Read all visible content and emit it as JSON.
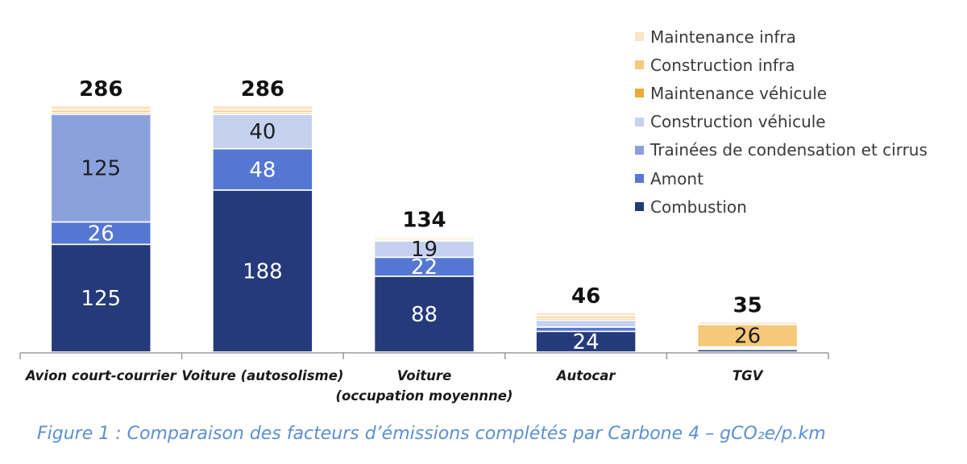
{
  "chart_data": {
    "type": "stacked-bar",
    "title": "",
    "ylim": [
      0,
      300
    ],
    "categories": [
      {
        "line1": "Avion court-courrier",
        "line2": ""
      },
      {
        "line1": "Voiture (autosolisme)",
        "line2": ""
      },
      {
        "line1": "Voiture",
        "line2": "(occupation moyennne)"
      },
      {
        "line1": "Autocar",
        "line2": ""
      },
      {
        "line1": "TGV",
        "line2": ""
      }
    ],
    "totals": [
      286,
      286,
      134,
      46,
      35
    ],
    "series": [
      {
        "name": "Combustion",
        "color": "#243a7a",
        "values": [
          125,
          188,
          88,
          24,
          3
        ]
      },
      {
        "name": "Amont",
        "color": "#5577d4",
        "values": [
          26,
          48,
          22,
          5,
          1
        ]
      },
      {
        "name": "Trainées de condensation et cirrus",
        "color": "#8aa2dc",
        "values": [
          125,
          0,
          0,
          0,
          0
        ]
      },
      {
        "name": "Construction véhicule",
        "color": "#c5d1ef",
        "values": [
          0,
          40,
          19,
          8,
          1
        ]
      },
      {
        "name": "Maintenance véhicule",
        "color": "#eda93a",
        "values": [
          2,
          2,
          1,
          2,
          1
        ]
      },
      {
        "name": "Construction infra",
        "color": "#f6c87a",
        "values": [
          3,
          3,
          2,
          3,
          26
        ]
      },
      {
        "name": "Maintenance infra",
        "color": "#fbe5c8",
        "values": [
          5,
          5,
          2,
          4,
          3
        ]
      }
    ],
    "data_labels": [
      [
        {
          "series": 0,
          "text": "125"
        },
        {
          "series": 1,
          "text": "26"
        },
        {
          "series": 2,
          "text": "125"
        }
      ],
      [
        {
          "series": 0,
          "text": "188"
        },
        {
          "series": 1,
          "text": "48"
        },
        {
          "series": 3,
          "text": "40"
        }
      ],
      [
        {
          "series": 0,
          "text": "88"
        },
        {
          "series": 1,
          "text": "22"
        },
        {
          "series": 3,
          "text": "19"
        }
      ],
      [
        {
          "series": 0,
          "text": "24"
        }
      ],
      [
        {
          "series": 5,
          "text": "26"
        }
      ]
    ],
    "legend_order": [
      6,
      5,
      4,
      3,
      2,
      1,
      0
    ]
  },
  "caption": "Figure 1 : Comparaison des facteurs d’émissions complétés par Carbone 4 – gCO₂e/p.km"
}
